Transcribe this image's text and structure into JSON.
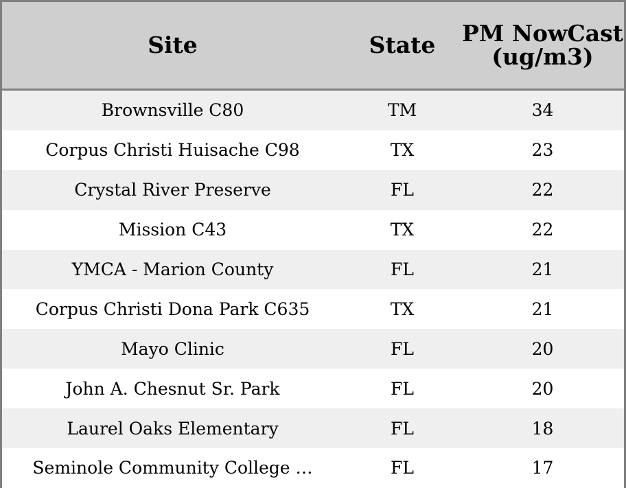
{
  "chart_data": {
    "type": "table",
    "columns": [
      "Site",
      "State",
      "PM NowCast (ug/m3)"
    ],
    "rows": [
      {
        "site": "Brownsville C80",
        "state": "TM",
        "pm": 34
      },
      {
        "site": "Corpus Christi Huisache C98",
        "state": "TX",
        "pm": 23
      },
      {
        "site": "Crystal River Preserve",
        "state": "FL",
        "pm": 22
      },
      {
        "site": "Mission C43",
        "state": "TX",
        "pm": 22
      },
      {
        "site": "YMCA - Marion County",
        "state": "FL",
        "pm": 21
      },
      {
        "site": "Corpus Christi Dona Park C635",
        "state": "TX",
        "pm": 21
      },
      {
        "site": "Mayo Clinic",
        "state": "FL",
        "pm": 20
      },
      {
        "site": "John A. Chesnut Sr. Park",
        "state": "FL",
        "pm": 20
      },
      {
        "site": "Laurel Oaks Elementary",
        "state": "FL",
        "pm": 18
      },
      {
        "site": "Seminole Community College …",
        "state": "FL",
        "pm": 17
      }
    ]
  },
  "colors": {
    "header_bg": "#cfcfcf",
    "row_alt_bg": "#efefef",
    "border": "#7f7f7f"
  }
}
